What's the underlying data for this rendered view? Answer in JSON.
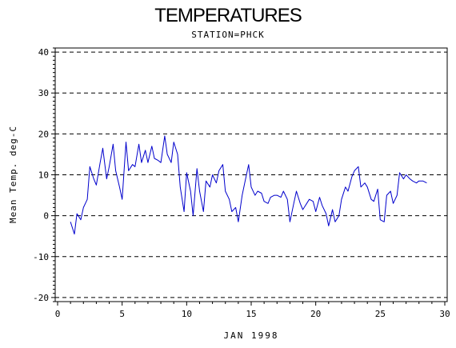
{
  "chart_data": {
    "type": "line",
    "title": "TEMPERATURES",
    "subtitle": "STATION=PHCK",
    "xlabel": "JAN 1998",
    "ylabel": "Mean Temp. deg-C",
    "xlim": [
      0,
      30
    ],
    "ylim": [
      -21,
      41
    ],
    "x_ticks": [
      0,
      5,
      10,
      15,
      20,
      25,
      30
    ],
    "y_ticks": [
      -20,
      -10,
      0,
      10,
      20,
      30,
      40
    ],
    "grid": "dashed horizontal lines at major y ticks",
    "line_color": "#0000cc",
    "series": [
      {
        "x": [
          1.0,
          1.3,
          1.5,
          1.8,
          2.0,
          2.3,
          2.5,
          2.8,
          3.0,
          3.3,
          3.5,
          3.8,
          4.0,
          4.3,
          4.5,
          4.8,
          5.0,
          5.3,
          5.5,
          5.8,
          6.0,
          6.3,
          6.5,
          6.8,
          7.0,
          7.3,
          7.5,
          7.8,
          8.0,
          8.3,
          8.5,
          8.8,
          9.0,
          9.3,
          9.5,
          9.8,
          10.0,
          10.3,
          10.5,
          10.8,
          11.0,
          11.3,
          11.5,
          11.8,
          12.0,
          12.3,
          12.5,
          12.8,
          13.0,
          13.3,
          13.5,
          13.8,
          14.0,
          14.3,
          14.5,
          14.8,
          15.0,
          15.3,
          15.5,
          15.8,
          16.0,
          16.3,
          16.5,
          16.8,
          17.0,
          17.3,
          17.5,
          17.8,
          18.0,
          18.3,
          18.5,
          18.8,
          19.0,
          19.3,
          19.5,
          19.8,
          20.0,
          20.3,
          20.5,
          20.8,
          21.0,
          21.3,
          21.5,
          21.8,
          22.0,
          22.3,
          22.5,
          22.8,
          23.0,
          23.3,
          23.5,
          23.8,
          24.0,
          24.3,
          24.5,
          24.8,
          25.0,
          25.3,
          25.5,
          25.8,
          26.0,
          26.3,
          26.5,
          26.8,
          27.0,
          27.3,
          27.5,
          27.8,
          28.0,
          28.3,
          28.6
        ],
        "y": [
          -1.5,
          -4.5,
          0.5,
          -1.0,
          2.0,
          4.0,
          12.0,
          9.0,
          7.5,
          13.0,
          16.5,
          9.0,
          12.0,
          17.5,
          11.0,
          7.0,
          4.0,
          18.0,
          11.0,
          12.5,
          12.0,
          17.5,
          13.0,
          16.0,
          13.0,
          17.0,
          14.0,
          13.5,
          13.0,
          19.5,
          15.0,
          13.0,
          18.0,
          15.0,
          7.0,
          1.0,
          10.5,
          6.0,
          0.0,
          11.5,
          6.0,
          1.0,
          8.5,
          7.0,
          10.0,
          8.0,
          11.0,
          12.5,
          6.0,
          4.0,
          1.0,
          2.0,
          -1.5,
          5.0,
          8.0,
          12.5,
          7.0,
          5.0,
          6.0,
          5.5,
          3.5,
          3.0,
          4.5,
          5.0,
          5.0,
          4.5,
          6.0,
          4.0,
          -1.5,
          3.0,
          6.0,
          3.0,
          1.5,
          3.0,
          4.0,
          3.5,
          1.0,
          4.5,
          2.5,
          0.5,
          -2.5,
          1.5,
          -1.5,
          0.0,
          4.0,
          7.0,
          6.0,
          9.5,
          11.0,
          12.0,
          7.0,
          8.0,
          7.0,
          4.0,
          3.5,
          6.5,
          -1.0,
          -1.5,
          5.0,
          6.0,
          3.0,
          5.0,
          10.5,
          9.0,
          10.0,
          9.0,
          8.5,
          8.0,
          8.5,
          8.5,
          8.0
        ]
      }
    ]
  }
}
